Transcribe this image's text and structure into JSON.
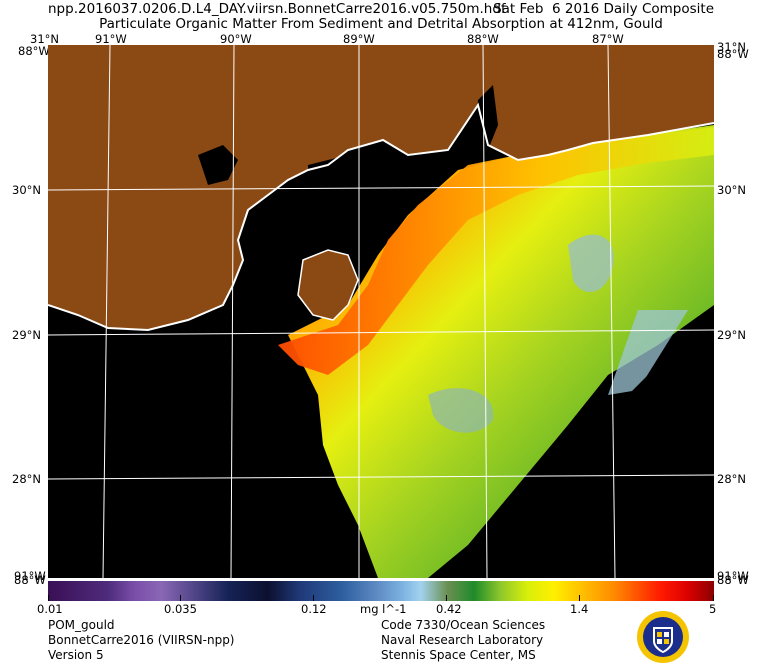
{
  "header": {
    "filename": "npp.2016037.0206.D.L4_DAY.viirsn.BonnetCarre2016.v05.750m.hdf",
    "date": "Sat Feb  6 2016 Daily Composite",
    "product": "Particulate Organic Matter From Sediment and Detrital Absorption at 412nm, Gould"
  },
  "map": {
    "top_lon_labels": [
      "91°W",
      "90°W",
      "89°W",
      "88°W",
      "87°W"
    ],
    "corner_top": "31°N",
    "corner_top_left_overlap": "88°W",
    "corner_bottom": "91°W",
    "corner_bottom_overlap": "88°W",
    "left_lat_labels": [
      "30°N",
      "29°N",
      "28°N"
    ],
    "right_lat_labels": [
      "30°N",
      "29°N",
      "28°N"
    ],
    "lat_lines": [
      30,
      29,
      28
    ],
    "lon_lines": [
      -91,
      -90,
      -89,
      -88,
      -87
    ],
    "colors": {
      "land": "#8b4a14",
      "no_data": "#000000",
      "coast": "#ffffff",
      "grid": "#ffffff"
    }
  },
  "colorbar": {
    "labels": [
      "0.01",
      "0.035",
      "0.12",
      "mg l^-1",
      "0.42",
      "1.4",
      "5"
    ],
    "range": [
      0.01,
      5
    ],
    "scale": "log"
  },
  "footer": {
    "left": [
      "POM_gould",
      "BonnetCarre2016 (VIIRSN-npp)",
      "Version 5"
    ],
    "right": [
      "Code 7330/Ocean Sciences",
      "Naval Research Laboratory",
      "Stennis Space Center, MS"
    ]
  },
  "emblem": {
    "name": "nrl-seal-icon",
    "colors": [
      "#f5c400",
      "#1c2e8c",
      "#ffffff"
    ]
  }
}
